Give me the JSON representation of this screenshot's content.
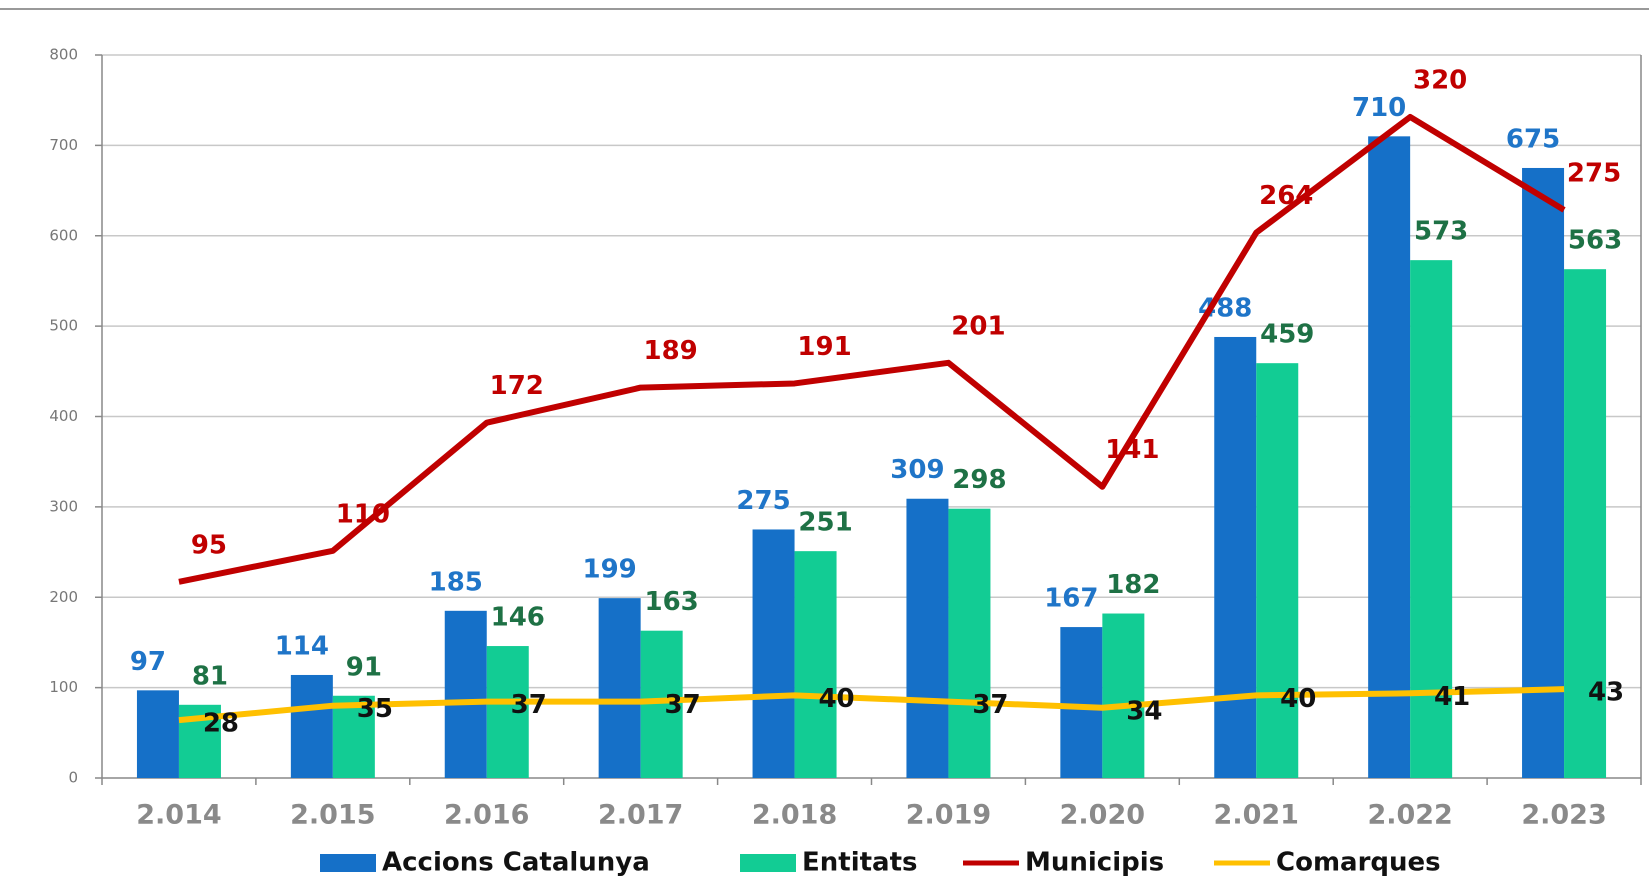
{
  "chart_data": {
    "type": "bar",
    "categories": [
      "2.014",
      "2.015",
      "2.016",
      "2.017",
      "2.018",
      "2.019",
      "2.020",
      "2.021",
      "2.022",
      "2.023"
    ],
    "ylim": [
      0,
      800
    ],
    "yticks": [
      0,
      100,
      200,
      300,
      400,
      500,
      600,
      700,
      800
    ],
    "y2lim": [
      0,
      350
    ],
    "grid": true,
    "legend": "bottom",
    "series": [
      {
        "name": "Accions Catalunya",
        "color": "#1570c8",
        "values": [
          97,
          114,
          185,
          199,
          275,
          309,
          167,
          488,
          710,
          675
        ]
      },
      {
        "name": "Entitats",
        "color": "#12cc94",
        "values": [
          81,
          91,
          146,
          163,
          251,
          298,
          182,
          459,
          573,
          563
        ]
      },
      {
        "name": "Municipis",
        "color": "#c00000",
        "type": "line",
        "axis": "y2",
        "values": [
          95,
          110,
          172,
          189,
          191,
          201,
          141,
          264,
          320,
          275
        ]
      },
      {
        "name": "Comarques",
        "color": "#ffc000",
        "type": "line",
        "axis": "y2",
        "values": [
          28,
          35,
          37,
          37,
          40,
          37,
          34,
          40,
          41,
          43
        ]
      }
    ]
  }
}
